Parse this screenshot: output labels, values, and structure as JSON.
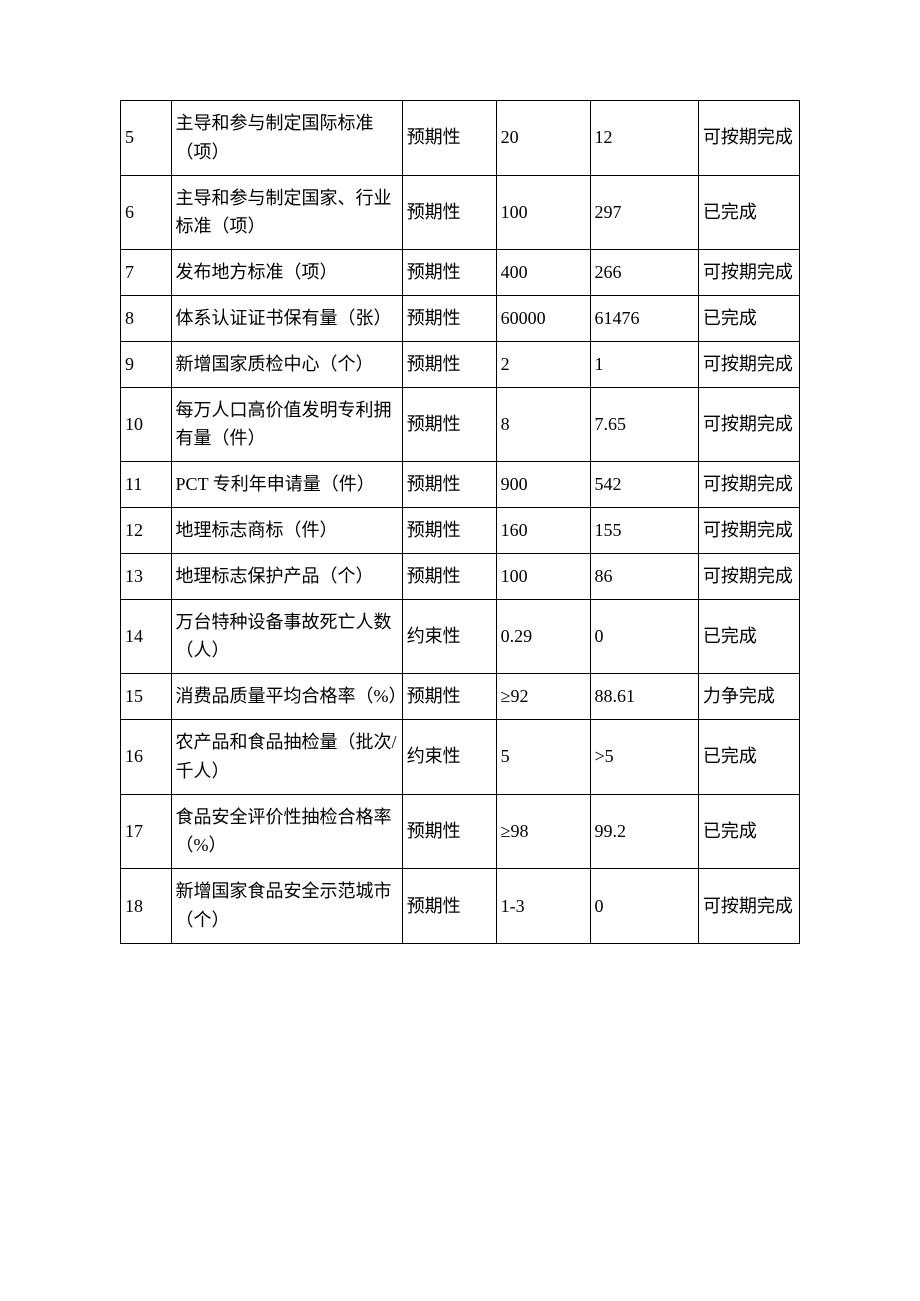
{
  "table": {
    "columns": [
      {
        "class": "col-1"
      },
      {
        "class": "col-2"
      },
      {
        "class": "col-3"
      },
      {
        "class": "col-4"
      },
      {
        "class": "col-5"
      },
      {
        "class": "col-6"
      }
    ],
    "rows": [
      {
        "num": "5",
        "indicator": "主导和参与制定国际标准（项）",
        "type": "预期性",
        "target": "20",
        "actual": "12",
        "status": "可按期完成"
      },
      {
        "num": "6",
        "indicator": "主导和参与制定国家、行业标准（项）",
        "type": "预期性",
        "target": "100",
        "actual": "297",
        "status": "已完成"
      },
      {
        "num": "7",
        "indicator": "发布地方标准（项）",
        "type": "预期性",
        "target": "400",
        "actual": "266",
        "status": "可按期完成"
      },
      {
        "num": "8",
        "indicator": "体系认证证书保有量（张）",
        "type": "预期性",
        "target": "60000",
        "actual": "61476",
        "status": "已完成"
      },
      {
        "num": "9",
        "indicator": "新增国家质检中心（个）",
        "type": "预期性",
        "target": "2",
        "actual": "1",
        "status": "可按期完成"
      },
      {
        "num": "10",
        "indicator": "每万人口高价值发明专利拥有量（件）",
        "type": "预期性",
        "target": "8",
        "actual": "7.65",
        "status": "可按期完成"
      },
      {
        "num": "11",
        "indicator": "PCT 专利年申请量（件）",
        "type": "预期性",
        "target": "900",
        "actual": "542",
        "status": "可按期完成"
      },
      {
        "num": "12",
        "indicator": "地理标志商标（件）",
        "type": "预期性",
        "target": "160",
        "actual": "155",
        "status": "可按期完成"
      },
      {
        "num": "13",
        "indicator": "地理标志保护产品（个）",
        "type": "预期性",
        "target": "100",
        "actual": "86",
        "status": "可按期完成"
      },
      {
        "num": "14",
        "indicator": "万台特种设备事故死亡人数（人）",
        "type": "约束性",
        "target": "0.29",
        "actual": "0",
        "status": "已完成"
      },
      {
        "num": "15",
        "indicator": "消费品质量平均合格率（%）",
        "type": "预期性",
        "target": "≥92",
        "actual": "88.61",
        "status": "力争完成",
        "statusClass": "row-15-status"
      },
      {
        "num": "16",
        "indicator": "农产品和食品抽检量（批次/千人）",
        "type": "约束性",
        "target": "5",
        "actual": ">5",
        "status": "已完成"
      },
      {
        "num": "17",
        "indicator": "食品安全评价性抽检合格率（%）",
        "type": "预期性",
        "target": "≥98",
        "actual": "99.2",
        "status": "已完成"
      },
      {
        "num": "18",
        "indicator": "新增国家食品安全示范城市（个）",
        "type": "预期性",
        "target": "1-3",
        "actual": "0",
        "status": "可按期完成"
      }
    ],
    "border_color": "#000000",
    "text_color": "#000000",
    "background_color": "#ffffff",
    "font_size": 18,
    "font_family": "SimSun"
  }
}
